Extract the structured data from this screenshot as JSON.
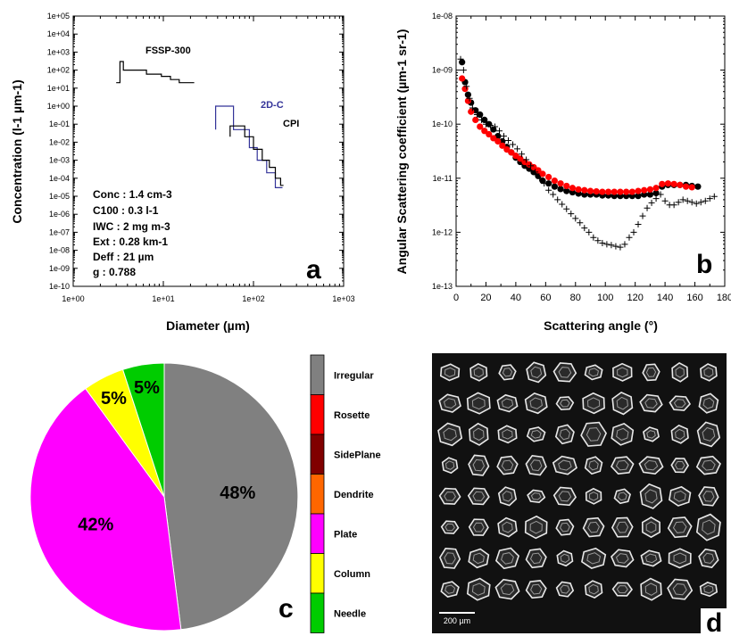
{
  "panels": {
    "a": {
      "letter": "a",
      "xlabel": "Diameter (µm)",
      "ylabel": "Concentration (l-1 µm-1)",
      "x_ticks": [
        "1e+00",
        "1e+01",
        "1e+02",
        "1e+03"
      ],
      "y_ticks": [
        "1e-10",
        "1e-09",
        "1e-08",
        "1e-07",
        "1e-06",
        "1e-05",
        "1e-04",
        "1e-03",
        "1e-02",
        "1e-01",
        "1e+00",
        "1e+01",
        "1e+02",
        "1e+03",
        "1e+04",
        "1e+05"
      ],
      "labels": {
        "fssp": "FSSP-300",
        "twodc": "2D-C",
        "cpi": "CPI"
      },
      "stats": [
        "Conc : 1.4 cm-3",
        "C100  : 0.3 l-1",
        "IWC   : 2 mg m-3",
        "Ext     : 0.28 km-1",
        "Deff    : 21 µm",
        "g        : 0.788"
      ]
    },
    "b": {
      "letter": "b",
      "xlabel": "Scattering angle (°)",
      "ylabel": "Angular Scattering coefficient (µm-1 sr-1)",
      "x_ticks": [
        "0",
        "20",
        "40",
        "60",
        "80",
        "100",
        "120",
        "140",
        "160",
        "180"
      ],
      "y_ticks": [
        "1e-13",
        "1e-12",
        "1e-11",
        "1e-10",
        "1e-09",
        "1e-08"
      ]
    },
    "c": {
      "letter": "c",
      "legend": [
        "Irregular",
        "Rosette",
        "SidePlane",
        "Dendrite",
        "Plate",
        "Column",
        "Needle"
      ]
    },
    "d": {
      "letter": "d",
      "scale_label": "200 µm"
    }
  },
  "chart_data": [
    {
      "type": "line",
      "panel": "a",
      "xscale": "log",
      "yscale": "log",
      "xlim": [
        1,
        1000
      ],
      "ylim": [
        1e-10,
        100000
      ],
      "series": [
        {
          "name": "FSSP-300",
          "color": "#000000",
          "x": [
            3,
            3.3,
            3.3,
            3.6,
            3.6,
            6.5,
            6.5,
            9.5,
            9.5,
            12,
            12,
            15,
            15,
            22
          ],
          "y": [
            20,
            20,
            300,
            300,
            100,
            100,
            60,
            60,
            45,
            45,
            30,
            30,
            20,
            20
          ]
        },
        {
          "name": "2D-C",
          "color": "#333399",
          "x": [
            38,
            38,
            60,
            60,
            90,
            90,
            110,
            110,
            140,
            140,
            175,
            175,
            210
          ],
          "y": [
            0.05,
            1,
            1,
            0.05,
            0.05,
            0.005,
            0.005,
            0.001,
            0.001,
            0.0002,
            0.0002,
            3e-05,
            3e-05
          ]
        },
        {
          "name": "CPI",
          "color": "#000000",
          "x": [
            55,
            55,
            80,
            80,
            100,
            100,
            125,
            125,
            150,
            150,
            175,
            175,
            200,
            200,
            215
          ],
          "y": [
            0.02,
            0.08,
            0.08,
            0.02,
            0.02,
            0.004,
            0.004,
            0.001,
            0.001,
            0.0004,
            0.0004,
            0.0001,
            0.0001,
            4e-05,
            4e-05
          ]
        }
      ]
    },
    {
      "type": "scatter",
      "panel": "b",
      "yscale": "log",
      "xlim": [
        0,
        180
      ],
      "ylim": [
        1e-13,
        1e-08
      ],
      "series": [
        {
          "color": "#000000",
          "marker": "circle",
          "x": [
            4,
            6,
            8,
            10,
            13,
            16,
            19,
            22,
            25,
            28,
            31,
            34,
            37,
            40,
            43,
            46,
            49,
            52,
            55,
            58,
            62,
            66,
            70,
            74,
            78,
            82,
            86,
            90,
            94,
            98,
            102,
            106,
            110,
            114,
            118,
            122,
            126,
            130,
            134,
            138,
            142,
            146,
            150,
            154,
            158,
            162
          ],
          "y": [
            1.4e-09,
            6e-10,
            3.5e-10,
            2.5e-10,
            1.8e-10,
            1.5e-10,
            1.2e-10,
            1e-10,
            8e-11,
            6e-11,
            4.8e-11,
            3.8e-11,
            3e-11,
            2.4e-11,
            2e-11,
            1.7e-11,
            1.5e-11,
            1.3e-11,
            1.1e-11,
            9e-12,
            8e-12,
            7e-12,
            6.3e-12,
            5.8e-12,
            5.5e-12,
            5.2e-12,
            5e-12,
            5e-12,
            5e-12,
            4.8e-12,
            4.8e-12,
            4.7e-12,
            4.7e-12,
            4.7e-12,
            4.7e-12,
            4.7e-12,
            5e-12,
            5e-12,
            5.3e-12,
            7e-12,
            7.5e-12,
            7.5e-12,
            7.5e-12,
            7.5e-12,
            7.2e-12,
            7e-12
          ]
        },
        {
          "color": "#ff0000",
          "marker": "circle",
          "x": [
            4,
            6,
            8,
            10,
            13,
            16,
            19,
            22,
            25,
            28,
            31,
            34,
            37,
            40,
            43,
            46,
            49,
            52,
            55,
            58,
            62,
            66,
            70,
            74,
            78,
            82,
            86,
            90,
            94,
            98,
            102,
            106,
            110,
            114,
            118,
            122,
            126,
            130,
            134,
            138,
            142,
            146,
            150,
            154,
            158
          ],
          "y": [
            7e-10,
            4.5e-10,
            2.7e-10,
            1.7e-10,
            1.2e-10,
            9e-11,
            7.5e-11,
            6.5e-11,
            5.5e-11,
            4.8e-11,
            4e-11,
            3.4e-11,
            3e-11,
            2.6e-11,
            2.3e-11,
            2e-11,
            1.8e-11,
            1.6e-11,
            1.4e-11,
            1.2e-11,
            1.05e-11,
            9e-12,
            8e-12,
            7.2e-12,
            6.6e-12,
            6.2e-12,
            6e-12,
            5.8e-12,
            5.7e-12,
            5.6e-12,
            5.6e-12,
            5.6e-12,
            5.6e-12,
            5.6e-12,
            5.6e-12,
            5.8e-12,
            6e-12,
            6.2e-12,
            6.6e-12,
            7.8e-12,
            8e-12,
            7.8e-12,
            7.5e-12,
            7e-12,
            6.8e-12
          ]
        },
        {
          "color": "#000000",
          "marker": "plus",
          "x": [
            3,
            5,
            7,
            9,
            11,
            14,
            17,
            20,
            23,
            26,
            29,
            32,
            35,
            38,
            41,
            44,
            47,
            50,
            53,
            56,
            59,
            62,
            65,
            68,
            71,
            74,
            77,
            80,
            83,
            86,
            89,
            92,
            95,
            98,
            101,
            104,
            107,
            110,
            113,
            116,
            119,
            122,
            125,
            128,
            131,
            134,
            137,
            140,
            143,
            146,
            149,
            152,
            155,
            158,
            161,
            164,
            167,
            170,
            173
          ],
          "y": [
            1.6e-09,
            1e-09,
            5e-10,
            3e-10,
            2e-10,
            1.5e-10,
            1.2e-10,
            1e-10,
            9.5e-11,
            9e-11,
            7.5e-11,
            6e-11,
            5e-11,
            4.2e-11,
            3.5e-11,
            2.8e-11,
            2.2e-11,
            1.7e-11,
            1.3e-11,
            1e-11,
            8e-12,
            6e-12,
            5e-12,
            4e-12,
            3.3e-12,
            2.7e-12,
            2.2e-12,
            1.8e-12,
            1.5e-12,
            1.2e-12,
            1e-12,
            8e-13,
            7e-13,
            6.3e-13,
            6e-13,
            5.8e-13,
            5.5e-13,
            5.3e-13,
            6e-13,
            8e-13,
            1e-12,
            1.4e-12,
            2e-12,
            2.8e-12,
            3.5e-12,
            4.2e-12,
            5e-12,
            3.8e-12,
            3.2e-12,
            3.2e-12,
            3.6e-12,
            4e-12,
            3.8e-12,
            3.6e-12,
            3.4e-12,
            3.6e-12,
            3.8e-12,
            4.2e-12,
            4.6e-12
          ]
        }
      ]
    },
    {
      "type": "pie",
      "panel": "c",
      "slices": [
        {
          "label": "Irregular",
          "value": 48,
          "text": "48%",
          "color": "#808080"
        },
        {
          "label": "Plate",
          "value": 42,
          "text": "42%",
          "color": "#ff00ff"
        },
        {
          "label": "Column",
          "value": 5,
          "text": "5%",
          "color": "#ffff00"
        },
        {
          "label": "Needle",
          "value": 5,
          "text": "5%",
          "color": "#00cc00"
        }
      ],
      "legend_colors": [
        "#808080",
        "#ff0000",
        "#800000",
        "#ff6600",
        "#ff00ff",
        "#ffff00",
        "#00cc00"
      ]
    }
  ]
}
